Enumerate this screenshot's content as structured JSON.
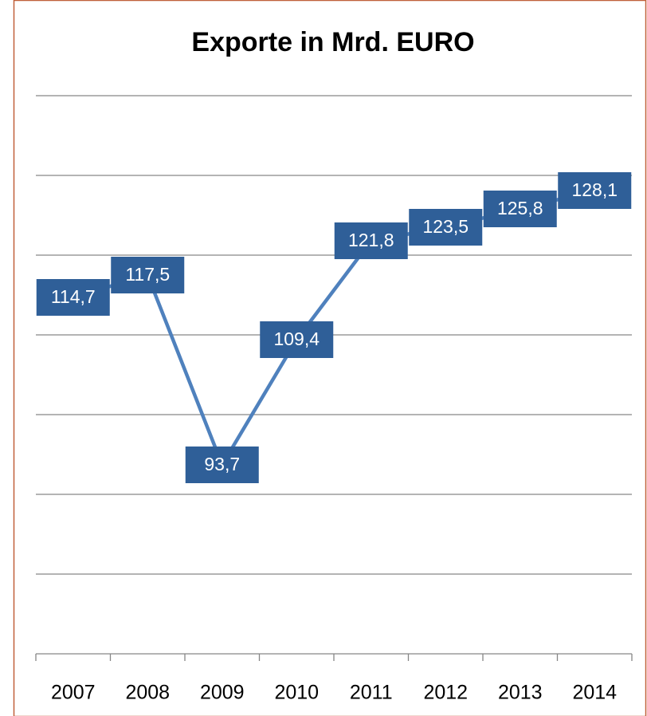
{
  "chart_data": {
    "type": "line",
    "title": "Exporte in Mrd. EURO",
    "categories": [
      "2007",
      "2008",
      "2009",
      "2010",
      "2011",
      "2012",
      "2013",
      "2014"
    ],
    "values": [
      114.7,
      117.5,
      93.7,
      109.4,
      121.8,
      123.5,
      125.8,
      128.1
    ],
    "value_labels": [
      "114,7",
      "117,5",
      "93,7",
      "109,4",
      "121,8",
      "123,5",
      "125,8",
      "128,1"
    ],
    "color": "#4f81bd",
    "label_color": "#2f5f98",
    "ylim": [
      70,
      140
    ],
    "yticks": [
      80,
      90,
      100,
      110,
      120,
      130,
      140
    ],
    "grid": true
  }
}
